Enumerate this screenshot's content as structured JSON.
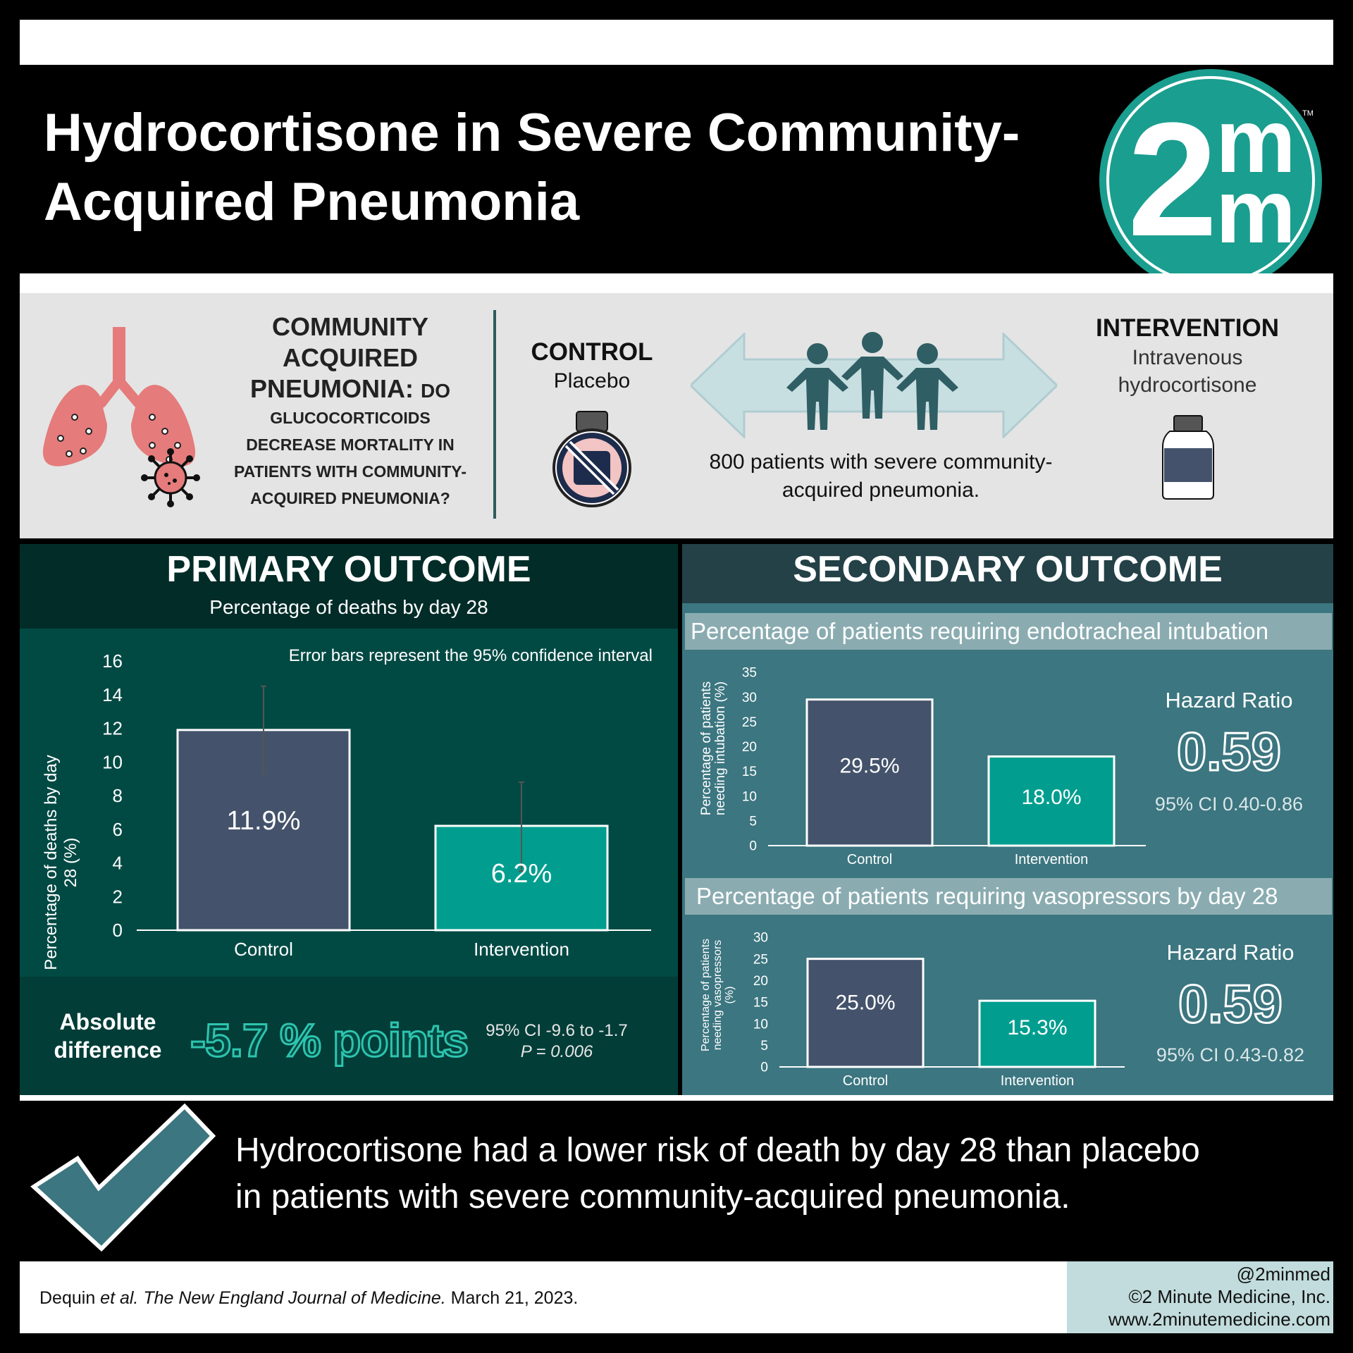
{
  "header": {
    "title_line1": "Hydrocortisone in Severe Community-",
    "title_line2": "Acquired Pneumonia",
    "logo_text_2": "2",
    "logo_text_m1": "m",
    "logo_text_m2": "m",
    "logo_tm": "TM",
    "colors": {
      "brand": "#1a9e8f"
    }
  },
  "study": {
    "question_big1": "COMMUNITY",
    "question_big2": "ACQUIRED",
    "question_big3": "PNEUMONIA:",
    "question_small1": "DO",
    "question_small2": "GLUCOCORTICOIDS",
    "question_small3": "DECREASE MORTALITY IN",
    "question_small4": "PATIENTS WITH COMMUNITY-",
    "question_small5": "ACQUIRED PNEUMONIA?",
    "control_head": "CONTROL",
    "control_sub": "Placebo",
    "intervention_head": "INTERVENTION",
    "intervention_sub1": "Intravenous",
    "intervention_sub2": "hydrocortisone",
    "patients_line1": "800 patients with severe community-",
    "patients_line2": "acquired pneumonia.",
    "icons": [
      "lungs-icon",
      "virus-icon",
      "placebo-bottle-icon",
      "patients-icon",
      "double-arrow-icon",
      "medicine-bottle-icon"
    ]
  },
  "primary": {
    "title": "PRIMARY OUTCOME",
    "subtitle": "Percentage of deaths by day 28",
    "note": "Error bars represent the 95% confidence interval",
    "ylabel_line1": "Percentage of deaths by day",
    "ylabel_line2": "28 (%)",
    "abs_label_line1": "Absolute",
    "abs_label_line2": "difference",
    "abs_value": "-5.7 % points",
    "abs_ci": "95% CI -9.6 to -1.7",
    "abs_p": "P = 0.006"
  },
  "secondary": {
    "title": "SECONDARY OUTCOME",
    "intubation_title": "Percentage of patients requiring endotracheal intubation",
    "vaso_title": "Percentage of patients requiring vasopressors by day 28",
    "hr1_label": "Hazard Ratio",
    "hr1_value": "0.59",
    "hr1_ci": "95% CI 0.40-0.86",
    "hr2_label": "Hazard Ratio",
    "hr2_value": "0.59",
    "hr2_ci": "95% CI 0.43-0.82"
  },
  "conclusion": {
    "line1": "Hydrocortisone had a lower risk of death by day 28 than placebo",
    "line2": "in patients with severe community-acquired pneumonia.",
    "icon": "checkmark-icon"
  },
  "footer": {
    "cite_author": "Dequin ",
    "cite_etal": "et al.",
    "cite_journal": " The New England Journal of Medicine.",
    "cite_date": " March 21, 2023.",
    "handle": "@2minmed",
    "copyright": "©2 Minute Medicine, Inc.",
    "website": "www.2minutemedicine.com"
  },
  "chart_data": [
    {
      "type": "bar",
      "title": "Percentage of deaths by day 28",
      "ylabel": "Percentage of deaths by day 28 (%)",
      "categories": [
        "Control",
        "Intervention"
      ],
      "values": [
        11.9,
        6.2
      ],
      "value_labels": [
        "11.9%",
        "6.2%"
      ],
      "error_low": [
        9.3,
        3.5
      ],
      "error_high": [
        14.5,
        8.8
      ],
      "ylim": [
        0,
        16
      ],
      "yticks": [
        "0",
        "2",
        "4",
        "6",
        "8",
        "10",
        "12",
        "14",
        "16"
      ],
      "bar_colors": [
        "#44536b",
        "#019e8f"
      ]
    },
    {
      "type": "bar",
      "title": "Percentage of patients requiring endotracheal intubation",
      "ylabel": "Percentage of patients needing intubation (%)",
      "ylabel_line1": "Percentage of patients",
      "ylabel_line2": "needing intubation (%)",
      "categories": [
        "Control",
        "Intervention"
      ],
      "values": [
        29.5,
        18.0
      ],
      "value_labels": [
        "29.5%",
        "18.0%"
      ],
      "ylim": [
        0,
        35
      ],
      "yticks": [
        "0",
        "5",
        "10",
        "15",
        "20",
        "25",
        "30",
        "35"
      ],
      "bar_colors": [
        "#44536b",
        "#019e8f"
      ]
    },
    {
      "type": "bar",
      "title": "Percentage of patients requiring vasopressors by day 28",
      "ylabel": "Percentage of patients needing vasopressors (%)",
      "ylabel_line1": "Percentage of patients",
      "ylabel_line2": "needing vasopressors",
      "ylabel_line3": "(%)",
      "categories": [
        "Control",
        "Intervention"
      ],
      "values": [
        25.0,
        15.3
      ],
      "value_labels": [
        "25.0%",
        "15.3%"
      ],
      "ylim": [
        0,
        30
      ],
      "yticks": [
        "0",
        "5",
        "10",
        "15",
        "20",
        "25",
        "30"
      ],
      "bar_colors": [
        "#44536b",
        "#019e8f"
      ]
    }
  ]
}
